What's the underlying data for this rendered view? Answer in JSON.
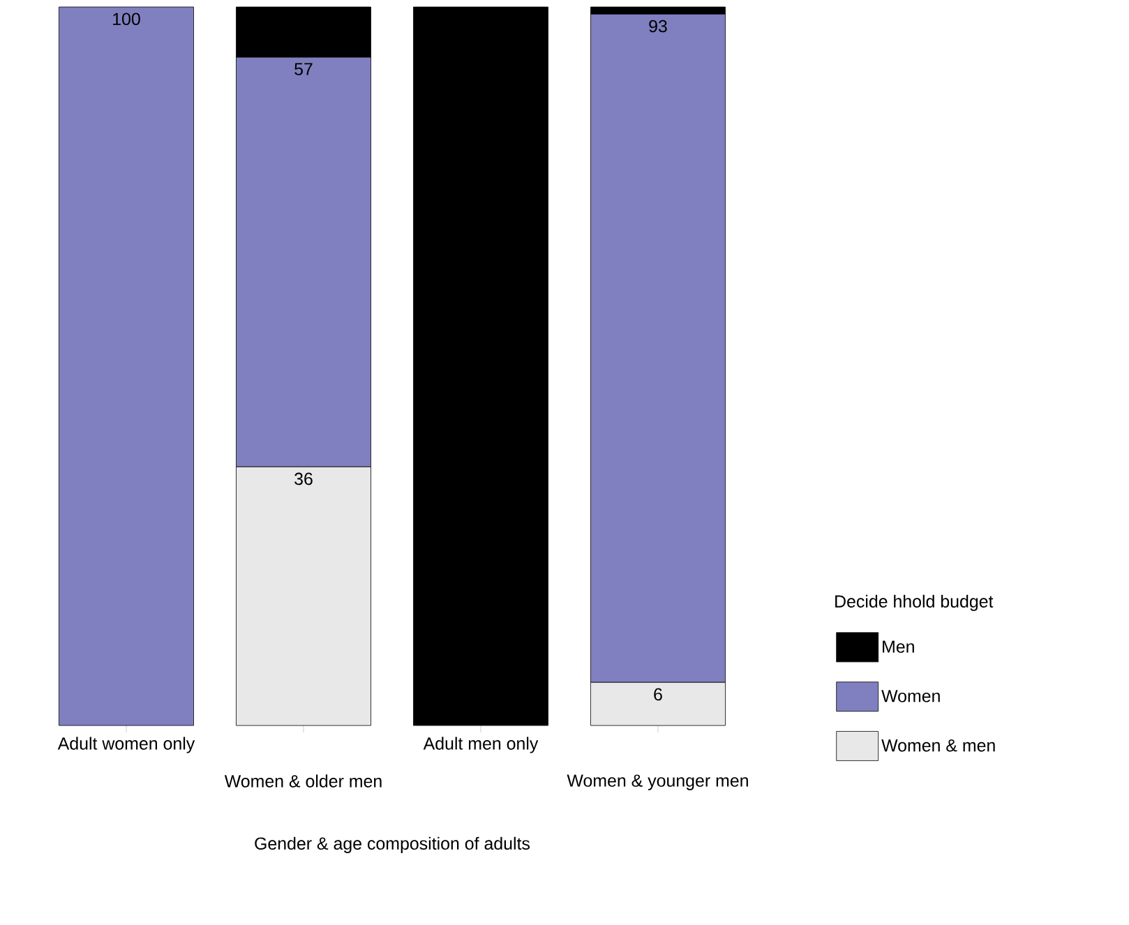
{
  "chart_data": {
    "type": "bar",
    "stacked": true,
    "xlabel": "Gender & age composition of adults",
    "legend_title": "Decide hhold budget",
    "legend": "right",
    "tick_labels": "x",
    "categories": [
      "Adult women only",
      "Women & older men",
      "Adult men only",
      "Women & younger men"
    ],
    "series": [
      {
        "name": "Women & men",
        "color": "#e8e8e8",
        "values": [
          0,
          36,
          0,
          6
        ],
        "value_labels": [
          null,
          "36",
          null,
          "6"
        ]
      },
      {
        "name": "Women",
        "color": "#8080c0",
        "values": [
          100,
          57,
          0,
          93
        ],
        "value_labels": [
          "100",
          "57",
          null,
          "93"
        ]
      },
      {
        "name": "Men",
        "color": "#000000",
        "values": [
          0,
          7,
          100,
          1
        ]
      }
    ]
  }
}
